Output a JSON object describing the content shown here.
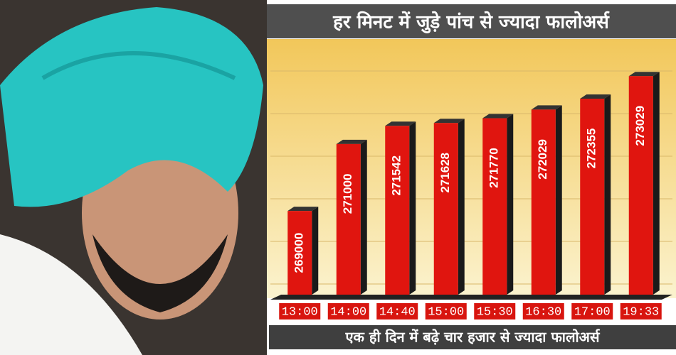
{
  "chart_data": {
    "type": "bar",
    "title": "हर मिनट में जुड़े पांच से ज्यादा फालोअर्स",
    "caption": "एक ही दिन में बढ़े चार हजार से ज्यादा फालोअर्स",
    "categories": [
      "13:00",
      "14:00",
      "14:40",
      "15:00",
      "15:30",
      "16:30",
      "17:00",
      "19:33"
    ],
    "values": [
      269000,
      271000,
      271542,
      271628,
      271770,
      272029,
      272355,
      273029
    ],
    "color": "#e0150f",
    "ylim": [
      266500,
      273500
    ]
  }
}
